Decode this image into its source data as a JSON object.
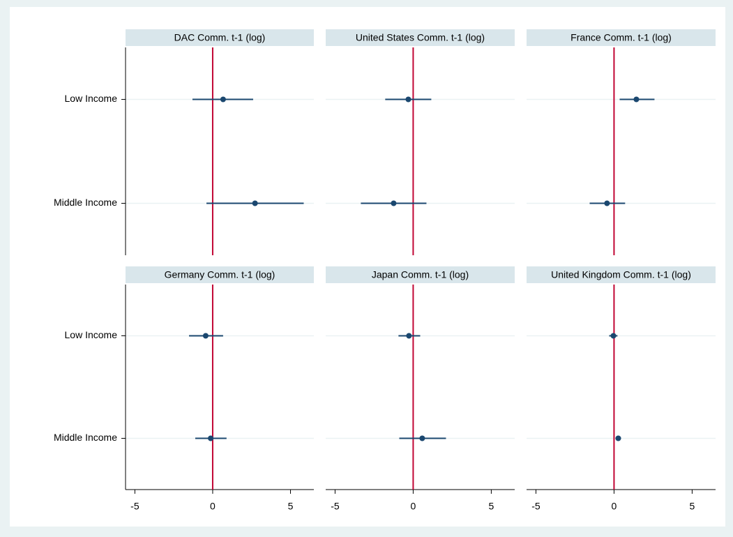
{
  "chart_data": {
    "type": "coefplot",
    "categories": [
      "Low Income",
      "Middle Income"
    ],
    "xlim": [
      -5.6,
      6.5
    ],
    "xticks": [
      -5,
      0,
      5
    ],
    "ylim": [
      0.5,
      2.5
    ],
    "xline": 0,
    "xline_color": "#c10534",
    "color": "#1a476f",
    "grid": true,
    "panels": [
      {
        "title": "DAC Comm. t-1 (log)",
        "values": [
          0.67,
          2.72
        ],
        "lower": [
          -1.3,
          -0.4
        ],
        "upper": [
          2.6,
          5.85
        ]
      },
      {
        "title": "United States Comm. t-1 (log)",
        "values": [
          -0.31,
          -1.25
        ],
        "lower": [
          -1.79,
          -3.35
        ],
        "upper": [
          1.16,
          0.85
        ]
      },
      {
        "title": "France Comm. t-1 (log)",
        "values": [
          1.43,
          -0.45
        ],
        "lower": [
          0.36,
          -1.56
        ],
        "upper": [
          2.59,
          0.71
        ]
      },
      {
        "title": "Germany Comm. t-1 (log)",
        "values": [
          -0.45,
          -0.13
        ],
        "lower": [
          -1.52,
          -1.12
        ],
        "upper": [
          0.67,
          0.89
        ]
      },
      {
        "title": "Japan Comm. t-1 (log)",
        "values": [
          -0.27,
          0.58
        ],
        "lower": [
          -0.94,
          -0.89
        ],
        "upper": [
          0.45,
          2.1
        ]
      },
      {
        "title": "United Kingdom Comm. t-1 (log)",
        "values": [
          -0.04,
          0.27
        ],
        "lower": [
          -0.31,
          0.09
        ],
        "upper": [
          0.22,
          0.45
        ]
      }
    ]
  }
}
